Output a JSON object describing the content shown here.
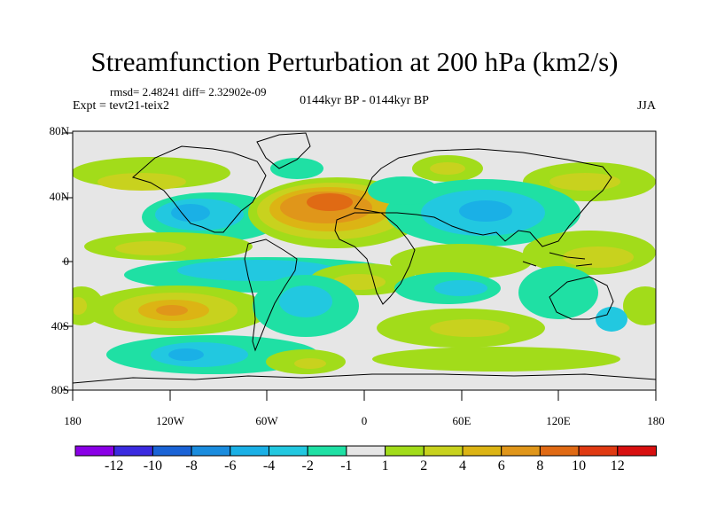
{
  "title": "Streamfunction Perturbation at 200 hPa (km2/s)",
  "stats": "rmsd= 2.48241 diff= 2.32902e-09",
  "expt": "Expt = tevt21-teix2",
  "period": "0144kyr BP - 0144kyr BP",
  "season": "JJA",
  "axes": {
    "x_ticks": [
      "180",
      "120W",
      "60W",
      "0",
      "60E",
      "120E",
      "180"
    ],
    "y_ticks": [
      "80N",
      "40N",
      "0",
      "40S",
      "80S"
    ]
  },
  "colorbar": {
    "labels": [
      "-12",
      "-10",
      "-8",
      "-6",
      "-4",
      "-2",
      "-1",
      "1",
      "2",
      "4",
      "6",
      "8",
      "10",
      "12"
    ],
    "colors": [
      "#8a00e6",
      "#3b2be0",
      "#1a63d6",
      "#1a8cde",
      "#1ab0e6",
      "#22c8e0",
      "#1fe0a4",
      "#e6e6e6",
      "#a2dc1a",
      "#c8d21e",
      "#dcb414",
      "#e0961a",
      "#e06a14",
      "#e03a12",
      "#d81010"
    ]
  },
  "map_colors": {
    "neutral": "#e6e6e6",
    "pos2": "#a2dc1a",
    "pos4": "#c8d21e",
    "pos6": "#dcb414",
    "pos8": "#e0961a",
    "pos10": "#e06a14",
    "neg1": "#1fe0a4",
    "neg2": "#22c8e0",
    "neg4": "#1ab0e6"
  }
}
